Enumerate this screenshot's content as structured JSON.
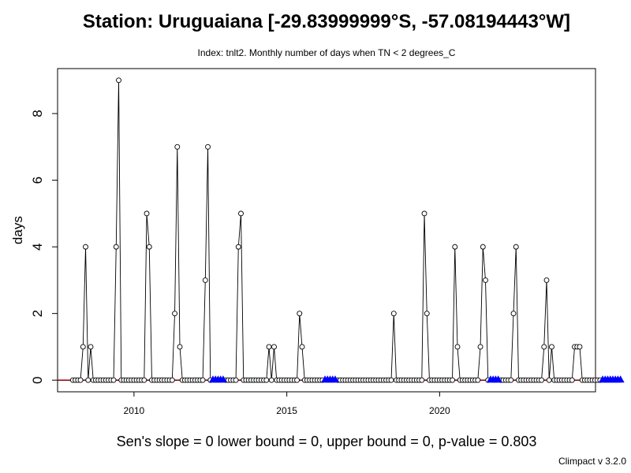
{
  "header": {
    "title": "Station: Uruguaiana [-29.83999999°S, -57.08194443°W]",
    "subtitle": "Index: tnlt2. Monthly number of days when TN < 2 degrees_C"
  },
  "footer": {
    "stats": "Sen's slope = 0   lower bound = 0,   upper bound = 0,   p-value = 0.803",
    "credit": "Climpact v 3.2.0"
  },
  "chart_data": {
    "type": "line",
    "title": "Station: Uruguaiana [-29.83999999°S, -57.08194443°W]",
    "subtitle": "Index: tnlt2. Monthly number of days when TN < 2 degrees_C",
    "xlabel": "",
    "ylabel": "days",
    "xlim": [
      2007.5,
      2025.1
    ],
    "ylim": [
      -0.35,
      9.35
    ],
    "xticks": [
      2010,
      2015,
      2020
    ],
    "yticks": [
      0,
      2,
      4,
      6,
      8
    ],
    "start": {
      "year": 2008,
      "month": 1
    },
    "values": [
      0,
      0,
      0,
      0,
      1,
      4,
      0,
      1,
      0,
      0,
      0,
      0,
      0,
      0,
      0,
      0,
      0,
      4,
      9,
      0,
      0,
      0,
      0,
      0,
      0,
      0,
      0,
      0,
      0,
      5,
      4,
      0,
      0,
      0,
      0,
      0,
      0,
      0,
      0,
      0,
      2,
      7,
      1,
      0,
      0,
      0,
      0,
      0,
      0,
      0,
      0,
      0,
      3,
      7,
      0,
      null,
      null,
      null,
      null,
      null,
      0,
      0,
      0,
      0,
      0,
      4,
      5,
      0,
      0,
      0,
      0,
      0,
      0,
      0,
      0,
      0,
      0,
      1,
      0,
      1,
      0,
      0,
      0,
      0,
      0,
      0,
      0,
      0,
      0,
      2,
      1,
      0,
      0,
      0,
      0,
      0,
      0,
      0,
      0,
      null,
      null,
      null,
      null,
      null,
      0,
      0,
      0,
      0,
      0,
      0,
      0,
      0,
      0,
      0,
      0,
      0,
      0,
      0,
      0,
      0,
      0,
      0,
      0,
      0,
      0,
      0,
      2,
      0,
      0,
      0,
      0,
      0,
      0,
      0,
      0,
      0,
      0,
      0,
      5,
      2,
      0,
      0,
      0,
      0,
      0,
      0,
      0,
      0,
      0,
      0,
      4,
      1,
      0,
      0,
      0,
      0,
      0,
      0,
      0,
      0,
      1,
      4,
      3,
      0,
      null,
      null,
      null,
      null,
      0,
      0,
      0,
      0,
      0,
      2,
      4,
      0,
      0,
      0,
      0,
      0,
      0,
      0,
      0,
      0,
      0,
      1,
      3,
      0,
      1,
      0,
      0,
      0,
      0,
      0,
      0,
      0,
      0,
      1,
      1,
      1,
      0,
      0,
      0,
      0,
      0,
      0,
      0,
      0,
      null,
      null,
      null,
      null,
      null,
      null,
      null,
      null
    ],
    "missing_marker_color": "#0000ff",
    "trend_line_color": "#8b0000",
    "grid": false,
    "legend": "none"
  }
}
